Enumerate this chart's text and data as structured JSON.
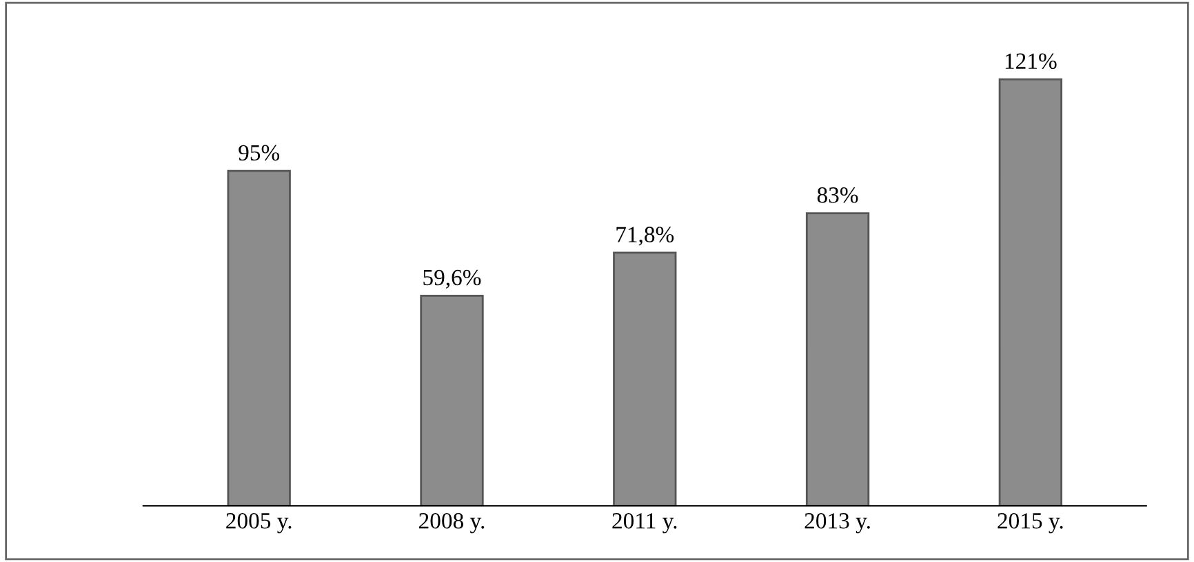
{
  "chart_data": {
    "type": "bar",
    "categories": [
      "2005 y.",
      "2008 y.",
      "2011 y.",
      "2013 y.",
      "2015 y."
    ],
    "values": [
      95,
      59.6,
      71.8,
      83,
      121
    ],
    "value_labels": [
      "95%",
      "59,6%",
      "71,8%",
      "83%",
      "121%"
    ],
    "color": "#8c8c8c",
    "grid": false,
    "legend": false
  }
}
